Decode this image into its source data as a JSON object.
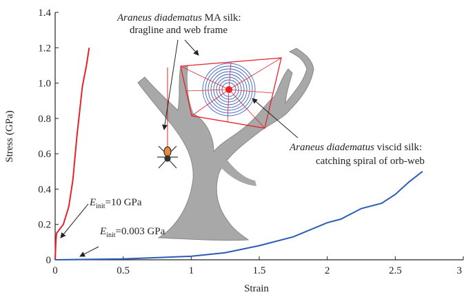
{
  "chart_data": {
    "type": "line",
    "xlabel": "Strain",
    "ylabel": "Stress (GPa)",
    "xlim": [
      0,
      3
    ],
    "ylim": [
      0,
      1.4
    ],
    "xticks": [
      0,
      0.5,
      1,
      1.5,
      2,
      2.5,
      3
    ],
    "yticks": [
      0,
      0.2,
      0.4,
      0.6,
      0.8,
      {
        "value": 1,
        "label": "1.0"
      },
      1.2,
      1.4
    ],
    "series": [
      {
        "color": "#e8202a",
        "x": [
          0,
          0.005,
          0.01,
          0.03,
          0.06,
          0.1,
          0.13,
          0.16,
          0.2,
          0.23,
          0.25
        ],
        "values": [
          0,
          0.1,
          0.15,
          0.17,
          0.2,
          0.3,
          0.45,
          0.7,
          0.98,
          1.1,
          1.2
        ]
      },
      {
        "color": "#2a5bb5",
        "x": [
          0,
          0.5,
          1,
          1.25,
          1.5,
          1.75,
          2,
          2.1,
          2.25,
          2.4,
          2.5,
          2.6,
          2.7
        ],
        "values": [
          0,
          0.005,
          0.02,
          0.04,
          0.08,
          0.13,
          0.21,
          0.23,
          0.29,
          0.32,
          0.37,
          0.44,
          0.5
        ]
      }
    ],
    "annotations": [
      {
        "italic": "Araneus diadematus",
        "rest": " MA silk:",
        "line2": "dragline and web frame"
      },
      {
        "italic": "Araneus diadematus",
        "rest": " viscid silk:",
        "line2": "catching spiral of orb-web"
      },
      {
        "base": "E",
        "sub": "init",
        "rest": "=10 GPa"
      },
      {
        "base": "E",
        "sub": "init",
        "rest": "=0.003 GPa"
      }
    ]
  }
}
